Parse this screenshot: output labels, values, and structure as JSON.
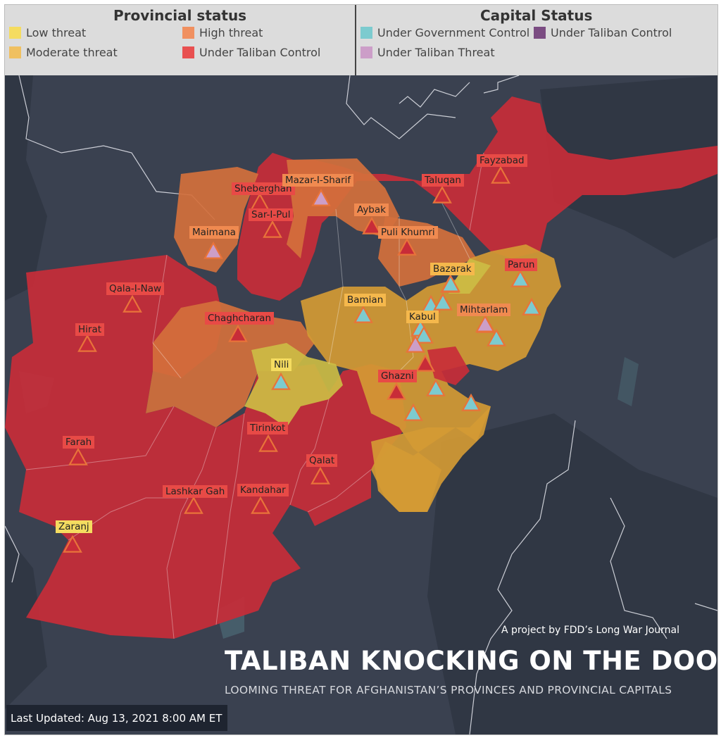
{
  "legend": {
    "provincial_title": "Provincial status",
    "capital_title": "Capital Status",
    "provincial_items": [
      {
        "label": "Low threat",
        "color": "#f5dc60"
      },
      {
        "label": "High threat",
        "color": "#f09060"
      },
      {
        "label": "Moderate threat",
        "color": "#f0c060"
      },
      {
        "label": "Under Taliban Control",
        "color": "#e85050"
      }
    ],
    "capital_items": [
      {
        "label": "Under Government Control",
        "color": "#7ccbcf"
      },
      {
        "label": "Under Taliban Control",
        "color": "#7b4c82"
      },
      {
        "label": "Under Taliban Threat",
        "color": "#cc9ec8"
      }
    ]
  },
  "colors": {
    "water": "#3a4150",
    "land": "#303744",
    "taliban": "#c82c38",
    "high": "#d4703c",
    "moderate": "#d49a34",
    "low": "#ccbc44",
    "gov": "#7ccbcf",
    "tal": "#7b4c82",
    "threat": "#cc9ec8"
  },
  "capitals": [
    {
      "name": "Fayzabad",
      "status": "taliban",
      "label_bg": "taliban"
    },
    {
      "name": "Sheberghan",
      "status": "taliban",
      "label_bg": "taliban"
    },
    {
      "name": "Mazar-I-Sharif",
      "status": "threat",
      "label_bg": "high"
    },
    {
      "name": "Taluqan",
      "status": "taliban",
      "label_bg": "taliban"
    },
    {
      "name": "Sar-I-Pul",
      "status": "taliban",
      "label_bg": "taliban"
    },
    {
      "name": "Aybak",
      "status": "taliban",
      "label_bg": "high"
    },
    {
      "name": "Puli Khumri",
      "status": "taliban",
      "label_bg": "high"
    },
    {
      "name": "Maimana",
      "status": "threat",
      "label_bg": "high"
    },
    {
      "name": "Bazarak",
      "status": "gov",
      "label_bg": "moderate"
    },
    {
      "name": "Parun",
      "status": "gov",
      "label_bg": "taliban"
    },
    {
      "name": "Qala-I-Naw",
      "status": "taliban",
      "label_bg": "taliban"
    },
    {
      "name": "Bamian",
      "status": "gov",
      "label_bg": "moderate"
    },
    {
      "name": "Kabul",
      "status": "gov",
      "label_bg": "moderate"
    },
    {
      "name": "Mihtarlam",
      "status": "threat",
      "label_bg": "high"
    },
    {
      "name": "Hirat",
      "status": "taliban",
      "label_bg": "taliban"
    },
    {
      "name": "Chaghcharan",
      "status": "taliban",
      "label_bg": "taliban"
    },
    {
      "name": "Nili",
      "status": "gov",
      "label_bg": "low"
    },
    {
      "name": "Ghazni",
      "status": "taliban",
      "label_bg": "taliban"
    },
    {
      "name": "Tirinkot",
      "status": "taliban",
      "label_bg": "taliban"
    },
    {
      "name": "Farah",
      "status": "taliban",
      "label_bg": "taliban"
    },
    {
      "name": "Qalat",
      "status": "taliban",
      "label_bg": "taliban"
    },
    {
      "name": "Lashkar Gah",
      "status": "taliban",
      "label_bg": "taliban"
    },
    {
      "name": "Kandahar",
      "status": "taliban",
      "label_bg": "taliban"
    },
    {
      "name": "Zaranj",
      "status": "taliban",
      "label_bg": "low"
    }
  ],
  "extra_markers": [
    "gov",
    "gov",
    "gov",
    "gov",
    "gov",
    "threat",
    "gov",
    "gov",
    "gov",
    "taliban",
    "threat",
    "gov",
    "gov"
  ],
  "credit": "A project by FDD’s Long War Journal",
  "title": "TALIBAN KNOCKING ON THE  DOOR",
  "subtitle": "LOOMING THREAT FOR AFGHANISTAN’S PROVINCES AND PROVINCIAL CAPITALS",
  "last_updated": "Last Updated: Aug 13, 2021 8:00 AM ET"
}
